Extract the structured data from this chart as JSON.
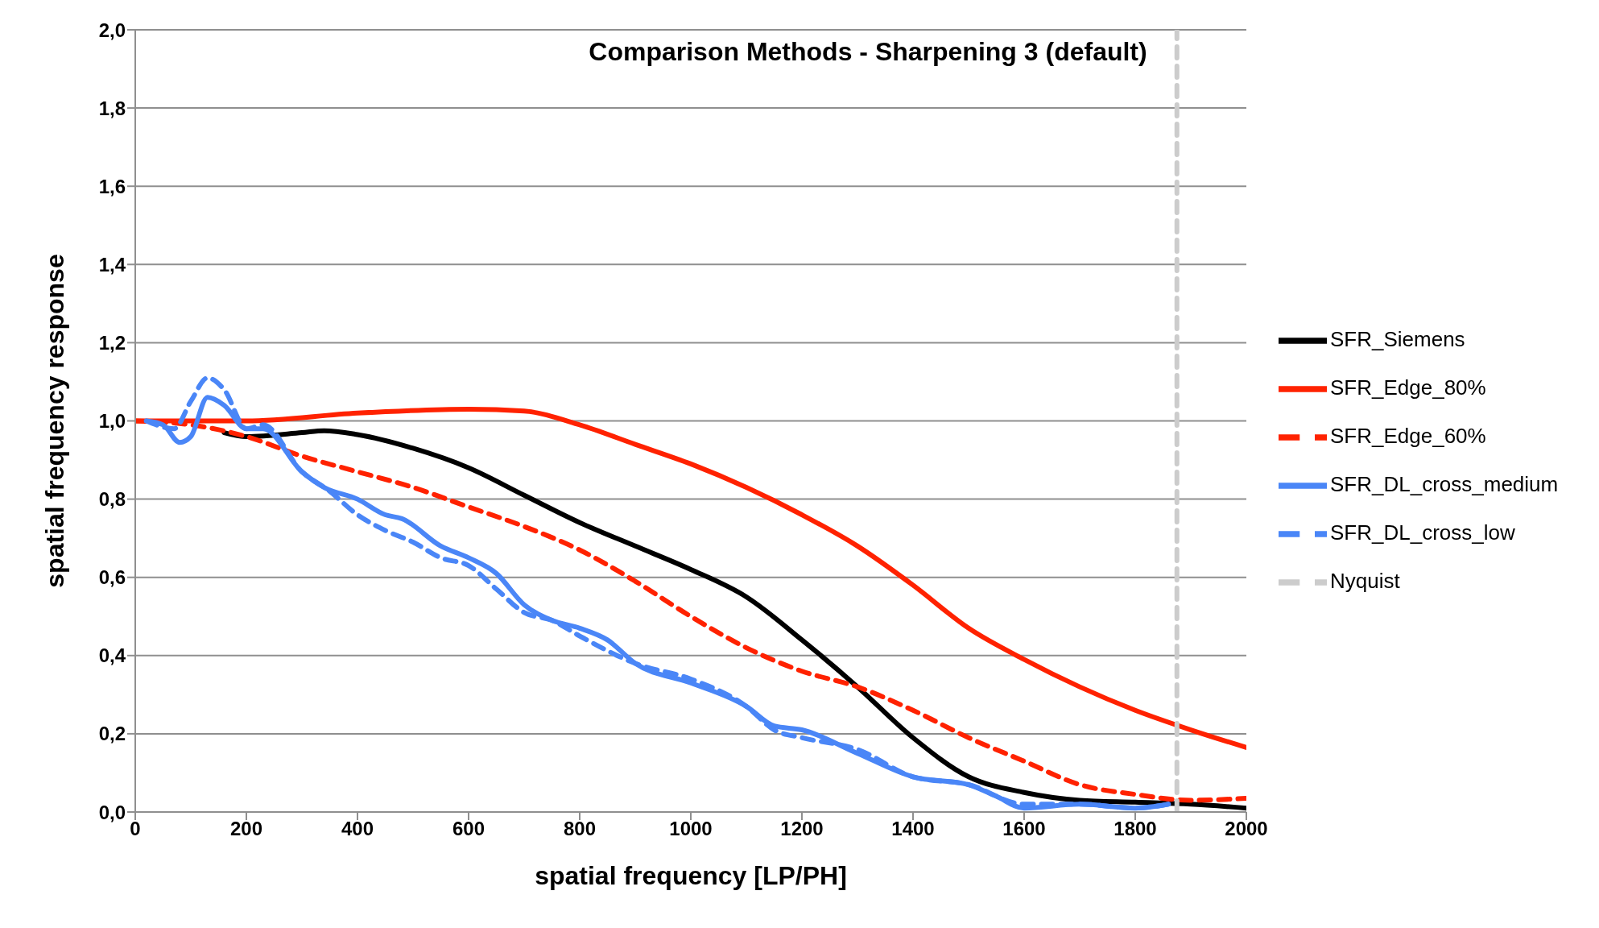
{
  "chart_data": {
    "type": "line",
    "title": "Comparison Methods - Sharpening 3 (default)",
    "xlabel": "spatial frequency [LP/PH]",
    "ylabel": "spatial frequency response",
    "xlim": [
      0,
      2000
    ],
    "xticks": [
      0,
      200,
      400,
      600,
      800,
      1000,
      1200,
      1400,
      1600,
      1800,
      2000
    ],
    "ylim": [
      0,
      2
    ],
    "yticks": [
      {
        "value": 0,
        "label": "0,0"
      },
      {
        "value": 0.2,
        "label": "0,2"
      },
      {
        "value": 0.4,
        "label": "0,4"
      },
      {
        "value": 0.6,
        "label": "0,6"
      },
      {
        "value": 0.8,
        "label": "0,8"
      },
      {
        "value": 1,
        "label": "1,0"
      },
      {
        "value": 1.2,
        "label": "1,2"
      },
      {
        "value": 1.4,
        "label": "1,4"
      },
      {
        "value": 1.6,
        "label": "1,6"
      },
      {
        "value": 1.8,
        "label": "1,8"
      },
      {
        "value": 2,
        "label": "2,0"
      }
    ],
    "grid": "y",
    "legend": "right",
    "marker": "none",
    "series": [
      {
        "name": "SFR_Siemens",
        "color": "#000000",
        "line_style": "solid",
        "x": [
          160,
          200,
          300,
          340,
          400,
          500,
          600,
          700,
          800,
          900,
          1000,
          1100,
          1200,
          1300,
          1400,
          1500,
          1600,
          1700,
          1800,
          1900,
          2000
        ],
        "values": [
          0.97,
          0.96,
          0.97,
          0.975,
          0.965,
          0.93,
          0.88,
          0.81,
          0.74,
          0.68,
          0.62,
          0.55,
          0.44,
          0.32,
          0.19,
          0.09,
          0.05,
          0.03,
          0.025,
          0.02,
          0.01
        ]
      },
      {
        "name": "SFR_Edge_80%",
        "color": "#ff2200",
        "line_style": "solid",
        "x": [
          0,
          200,
          400,
          600,
          700,
          800,
          900,
          1000,
          1100,
          1200,
          1300,
          1400,
          1500,
          1600,
          1700,
          1800,
          1900,
          2000
        ],
        "values": [
          1.0,
          1.0,
          1.02,
          1.03,
          1.025,
          0.99,
          0.94,
          0.89,
          0.83,
          0.76,
          0.68,
          0.58,
          0.47,
          0.39,
          0.32,
          0.26,
          0.21,
          0.165
        ]
      },
      {
        "name": "SFR_Edge_60%",
        "color": "#ff2200",
        "line_style": "dashed",
        "x": [
          0,
          100,
          200,
          300,
          400,
          500,
          600,
          700,
          800,
          900,
          1000,
          1100,
          1200,
          1300,
          1400,
          1500,
          1600,
          1700,
          1800,
          1900,
          2000
        ],
        "values": [
          1.0,
          0.99,
          0.96,
          0.91,
          0.87,
          0.83,
          0.78,
          0.73,
          0.67,
          0.59,
          0.5,
          0.42,
          0.36,
          0.32,
          0.26,
          0.19,
          0.13,
          0.07,
          0.045,
          0.03,
          0.035
        ]
      },
      {
        "name": "SFR_DL_cross_medium",
        "color": "#4a86f7",
        "line_style": "solid",
        "x": [
          20,
          50,
          80,
          100,
          130,
          160,
          200,
          230,
          300,
          340,
          400,
          450,
          480,
          550,
          600,
          650,
          700,
          750,
          800,
          850,
          900,
          1000,
          1100,
          1150,
          1200,
          1300,
          1400,
          1500,
          1550,
          1600,
          1700,
          1800,
          1860
        ],
        "values": [
          1.0,
          0.99,
          0.945,
          0.96,
          1.06,
          1.04,
          0.98,
          0.98,
          0.87,
          0.83,
          0.8,
          0.76,
          0.75,
          0.68,
          0.65,
          0.61,
          0.53,
          0.49,
          0.47,
          0.44,
          0.38,
          0.33,
          0.27,
          0.22,
          0.21,
          0.15,
          0.09,
          0.07,
          0.04,
          0.01,
          0.02,
          0.01,
          0.02
        ]
      },
      {
        "name": "SFR_DL_cross_low",
        "color": "#4a86f7",
        "line_style": "dashed",
        "x": [
          20,
          70,
          100,
          130,
          160,
          200,
          230,
          300,
          350,
          400,
          450,
          500,
          550,
          600,
          650,
          700,
          750,
          800,
          900,
          1000,
          1100,
          1150,
          1200,
          1300,
          1400,
          1500,
          1600,
          1700,
          1800,
          1860
        ],
        "values": [
          1.0,
          0.98,
          1.05,
          1.11,
          1.08,
          0.98,
          0.99,
          0.87,
          0.82,
          0.76,
          0.72,
          0.69,
          0.65,
          0.63,
          0.57,
          0.51,
          0.49,
          0.45,
          0.38,
          0.34,
          0.27,
          0.21,
          0.19,
          0.16,
          0.09,
          0.07,
          0.02,
          0.02,
          0.01,
          0.02
        ]
      },
      {
        "name": "Nyquist",
        "color": "#cccccc",
        "line_style": "dashed",
        "x": [
          1875,
          1875
        ],
        "values": [
          0,
          2
        ]
      }
    ]
  }
}
